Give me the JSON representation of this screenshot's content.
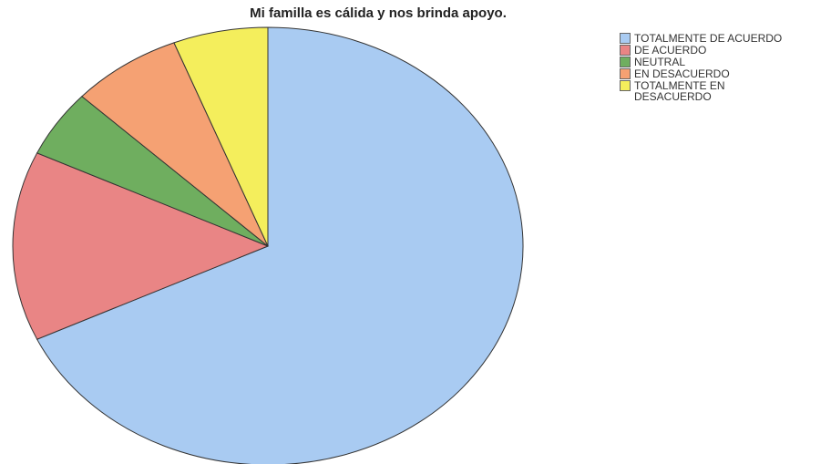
{
  "chart_data": {
    "type": "pie",
    "title": "Mi familla es cálida y nos brinda apoyo.",
    "categories": [
      "TOTALMENTE DE ACUERDO",
      "DE ACUERDO",
      "NEUTRAL",
      "EN DESACUERDO",
      "TOTALMENTE EN DESACUERDO"
    ],
    "values": [
      68,
      14,
      5,
      7,
      6
    ],
    "colors": [
      "#a9cbf2",
      "#e98585",
      "#6fae5f",
      "#f5a173",
      "#f4ee5c"
    ],
    "legend": "right"
  }
}
